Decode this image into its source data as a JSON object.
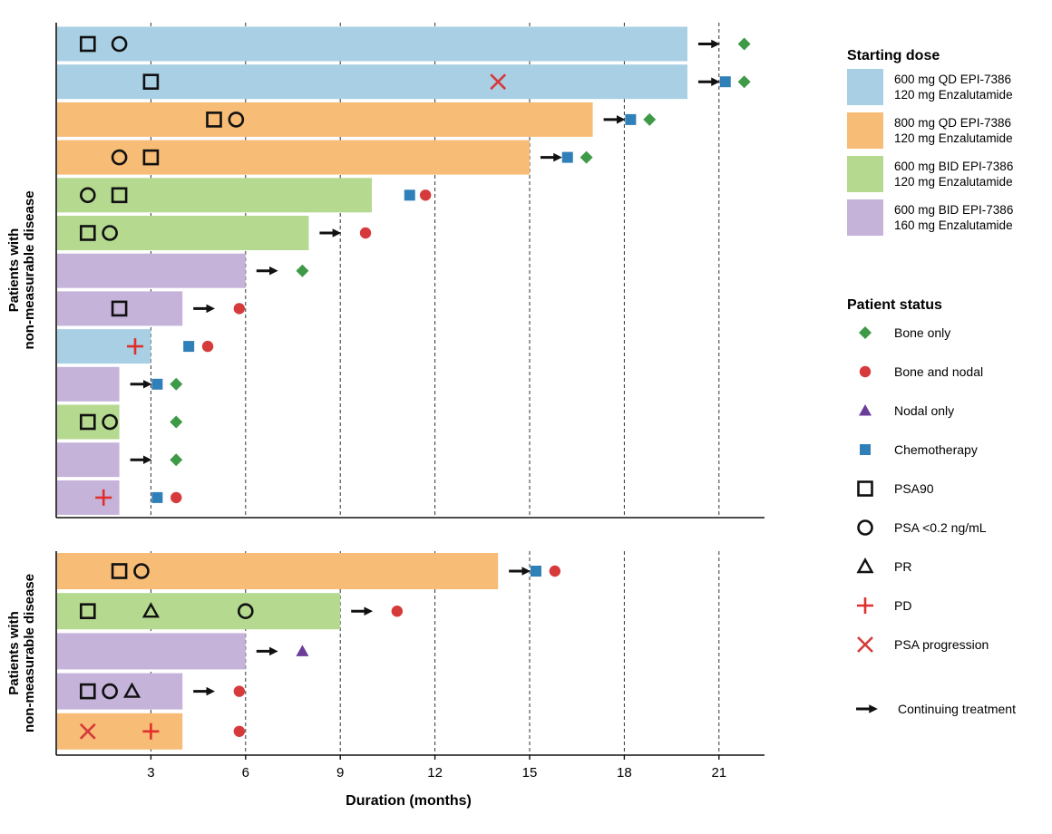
{
  "chart_data": {
    "type": "bar",
    "orientation": "horizontal",
    "xlabel": "Duration (months)",
    "xlim": [
      0,
      22.5
    ],
    "xticks": [
      3,
      6,
      9,
      12,
      15,
      18,
      21
    ],
    "grid": "vertical-dashed",
    "legend_position": "right",
    "panels": [
      {
        "ylabel_line1": "Patients with",
        "ylabel_line2": "non-measurable disease",
        "rows": [
          {
            "dose": "d1",
            "duration": 20,
            "continuing": true,
            "status": "bone_only",
            "status_x": 21.8,
            "chemo_x": null,
            "markers": [
              {
                "type": "psa90",
                "x": 1
              },
              {
                "type": "psa02",
                "x": 2
              }
            ]
          },
          {
            "dose": "d1",
            "duration": 20,
            "continuing": true,
            "status": "bone_only",
            "status_x": 21.8,
            "chemo_x": 21.2,
            "markers": [
              {
                "type": "psa90",
                "x": 3
              },
              {
                "type": "psaprog",
                "x": 14
              }
            ]
          },
          {
            "dose": "d2",
            "duration": 17,
            "continuing": true,
            "status": "bone_only",
            "status_x": 18.8,
            "chemo_x": 18.2,
            "markers": [
              {
                "type": "psa90",
                "x": 5
              },
              {
                "type": "psa02",
                "x": 5.7
              }
            ]
          },
          {
            "dose": "d2",
            "duration": 15,
            "continuing": true,
            "status": "bone_only",
            "status_x": 16.8,
            "chemo_x": 16.2,
            "markers": [
              {
                "type": "psa02",
                "x": 2
              },
              {
                "type": "psa90",
                "x": 3
              }
            ]
          },
          {
            "dose": "d3",
            "duration": 10,
            "continuing": false,
            "status": "bone_nodal",
            "status_x": 11.7,
            "chemo_x": 11.2,
            "markers": [
              {
                "type": "psa02",
                "x": 1
              },
              {
                "type": "psa90",
                "x": 2
              }
            ]
          },
          {
            "dose": "d3",
            "duration": 8,
            "continuing": true,
            "status": "bone_nodal",
            "status_x": 9.8,
            "chemo_x": null,
            "markers": [
              {
                "type": "psa90",
                "x": 1
              },
              {
                "type": "psa02",
                "x": 1.7
              }
            ]
          },
          {
            "dose": "d4",
            "duration": 6,
            "continuing": true,
            "status": "bone_only",
            "status_x": 7.8,
            "chemo_x": null,
            "markers": []
          },
          {
            "dose": "d4",
            "duration": 4,
            "continuing": true,
            "status": "bone_nodal",
            "status_x": 5.8,
            "chemo_x": null,
            "markers": [
              {
                "type": "psa90",
                "x": 2
              }
            ]
          },
          {
            "dose": "d1",
            "duration": 3,
            "continuing": false,
            "status": "bone_nodal",
            "status_x": 4.8,
            "chemo_x": 4.2,
            "markers": [
              {
                "type": "pd",
                "x": 2.5
              }
            ]
          },
          {
            "dose": "d4",
            "duration": 2,
            "continuing": true,
            "status": "bone_only",
            "status_x": 3.8,
            "chemo_x": 3.2,
            "markers": []
          },
          {
            "dose": "d3",
            "duration": 2,
            "continuing": false,
            "status": "bone_only",
            "status_x": 3.8,
            "chemo_x": null,
            "markers": [
              {
                "type": "psa90",
                "x": 1
              },
              {
                "type": "psa02",
                "x": 1.7
              }
            ]
          },
          {
            "dose": "d4",
            "duration": 2,
            "continuing": true,
            "status": "bone_only",
            "status_x": 3.8,
            "chemo_x": null,
            "markers": []
          },
          {
            "dose": "d4",
            "duration": 2,
            "continuing": false,
            "status": "bone_nodal",
            "status_x": 3.8,
            "chemo_x": 3.2,
            "markers": [
              {
                "type": "pd",
                "x": 1.5
              }
            ]
          }
        ]
      },
      {
        "ylabel_line1": "Patients with",
        "ylabel_line2": "non-measurable disease",
        "rows": [
          {
            "dose": "d2",
            "duration": 14,
            "continuing": true,
            "status": "bone_nodal",
            "status_x": 15.8,
            "chemo_x": 15.2,
            "markers": [
              {
                "type": "psa90",
                "x": 2
              },
              {
                "type": "psa02",
                "x": 2.7
              }
            ]
          },
          {
            "dose": "d3",
            "duration": 9,
            "continuing": true,
            "status": "bone_nodal",
            "status_x": 10.8,
            "chemo_x": null,
            "markers": [
              {
                "type": "psa90",
                "x": 1
              },
              {
                "type": "pr",
                "x": 3
              },
              {
                "type": "psa02",
                "x": 6
              }
            ]
          },
          {
            "dose": "d4",
            "duration": 6,
            "continuing": true,
            "status": "nodal_only",
            "status_x": 7.8,
            "chemo_x": null,
            "markers": []
          },
          {
            "dose": "d4",
            "duration": 4,
            "continuing": true,
            "status": "bone_nodal",
            "status_x": 5.8,
            "chemo_x": null,
            "markers": [
              {
                "type": "psa90",
                "x": 1
              },
              {
                "type": "psa02",
                "x": 1.7
              },
              {
                "type": "pr",
                "x": 2.4
              }
            ]
          },
          {
            "dose": "d2",
            "duration": 4,
            "continuing": false,
            "status": "bone_nodal",
            "status_x": 5.8,
            "chemo_x": null,
            "markers": [
              {
                "type": "psaprog",
                "x": 1
              },
              {
                "type": "pd",
                "x": 3
              }
            ]
          }
        ]
      }
    ],
    "legend": {
      "dose_title": "Starting dose",
      "doses": [
        {
          "key": "d1",
          "line1": "600 mg QD EPI-7386",
          "line2": "120 mg Enzalutamide",
          "color": "#a9cfe4"
        },
        {
          "key": "d2",
          "line1": "800 mg QD EPI-7386",
          "line2": "120 mg Enzalutamide",
          "color": "#f7bc76"
        },
        {
          "key": "d3",
          "line1": "600 mg BID EPI-7386",
          "line2": "120 mg Enzalutamide",
          "color": "#b4d98f"
        },
        {
          "key": "d4",
          "line1": "600 mg BID EPI-7386",
          "line2": "160 mg Enzalutamide",
          "color": "#c5b3da"
        }
      ],
      "status_title": "Patient status",
      "statuses": [
        {
          "key": "bone_only",
          "label": "Bone only",
          "color": "#3e9a47"
        },
        {
          "key": "bone_nodal",
          "label": "Bone and nodal",
          "color": "#d63a3a"
        },
        {
          "key": "nodal_only",
          "label": "Nodal only",
          "color": "#6a3d9a"
        },
        {
          "key": "chemo",
          "label": "Chemotherapy",
          "color": "#2f7fb8"
        },
        {
          "key": "psa90",
          "label": "PSA90",
          "color": "#111111"
        },
        {
          "key": "psa02",
          "label": "PSA <0.2 ng/mL",
          "color": "#111111"
        },
        {
          "key": "pr",
          "label": "PR",
          "color": "#111111"
        },
        {
          "key": "pd",
          "label": "PD",
          "color": "#e0302c"
        },
        {
          "key": "psaprog",
          "label": "PSA progression",
          "color": "#d63a3a"
        },
        {
          "key": "continuing",
          "label": "Continuing treatment",
          "color": "#111111"
        }
      ]
    }
  }
}
